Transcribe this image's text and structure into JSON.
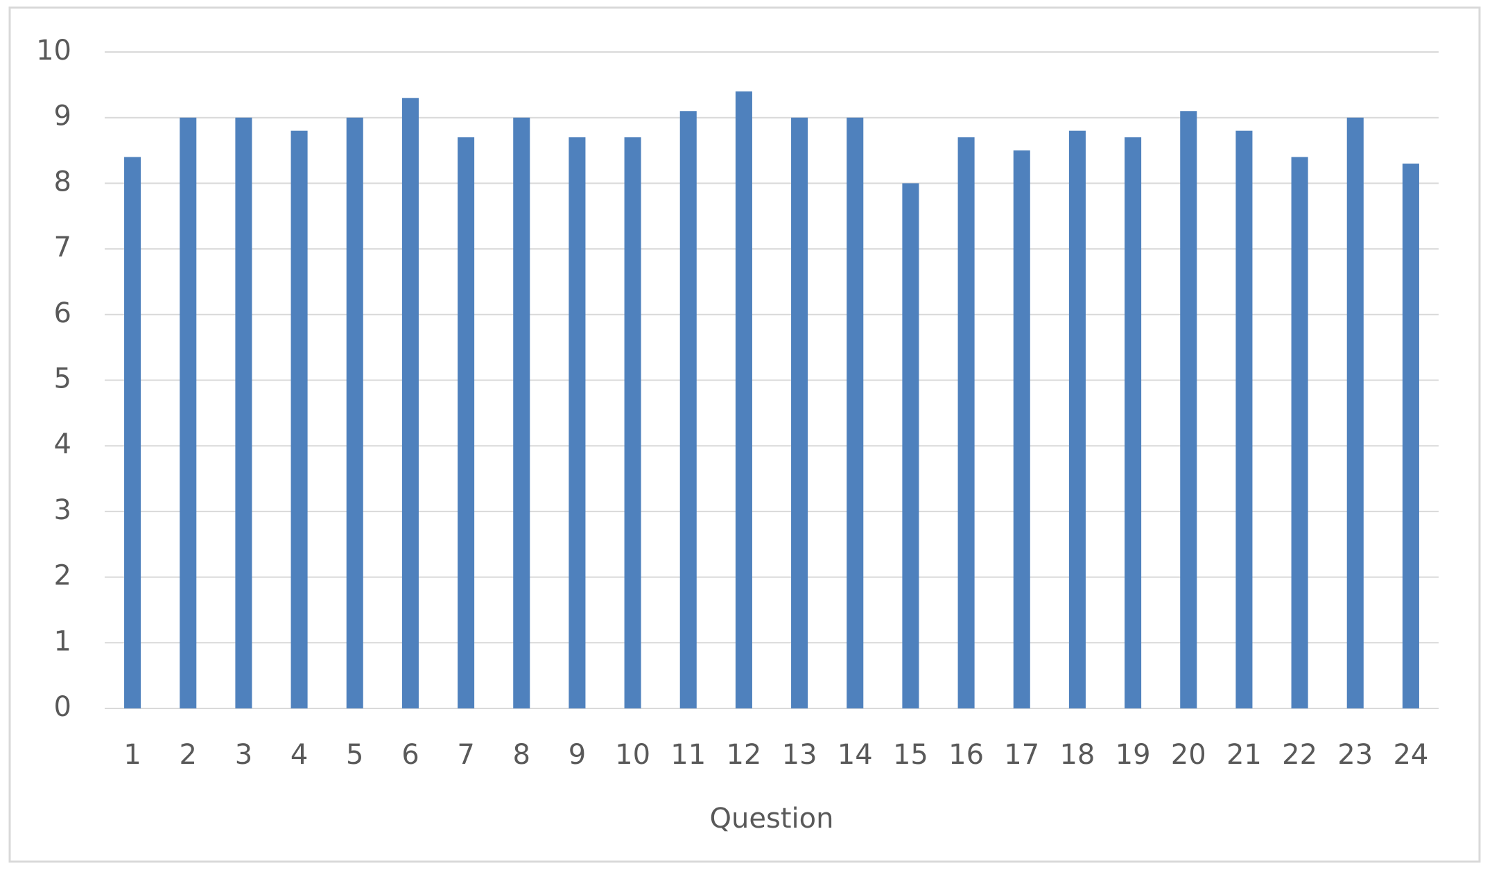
{
  "chart_data": {
    "type": "bar",
    "x_label": "Question",
    "categories": [
      "1",
      "2",
      "3",
      "4",
      "5",
      "6",
      "7",
      "8",
      "9",
      "10",
      "11",
      "12",
      "13",
      "14",
      "15",
      "16",
      "17",
      "18",
      "19",
      "20",
      "21",
      "22",
      "23",
      "24"
    ],
    "values": [
      8.4,
      9.0,
      9.0,
      8.8,
      9.0,
      9.3,
      8.7,
      9.0,
      8.7,
      8.7,
      9.1,
      9.4,
      9.0,
      9.0,
      8.0,
      8.7,
      8.5,
      8.8,
      8.7,
      9.1,
      8.8,
      8.4,
      9.0,
      8.3
    ],
    "color": "#4f81bd",
    "ylim": [
      0,
      10
    ],
    "yticks": [
      0,
      1,
      2,
      3,
      4,
      5,
      6,
      7,
      8,
      9,
      10
    ],
    "grid": true
  }
}
